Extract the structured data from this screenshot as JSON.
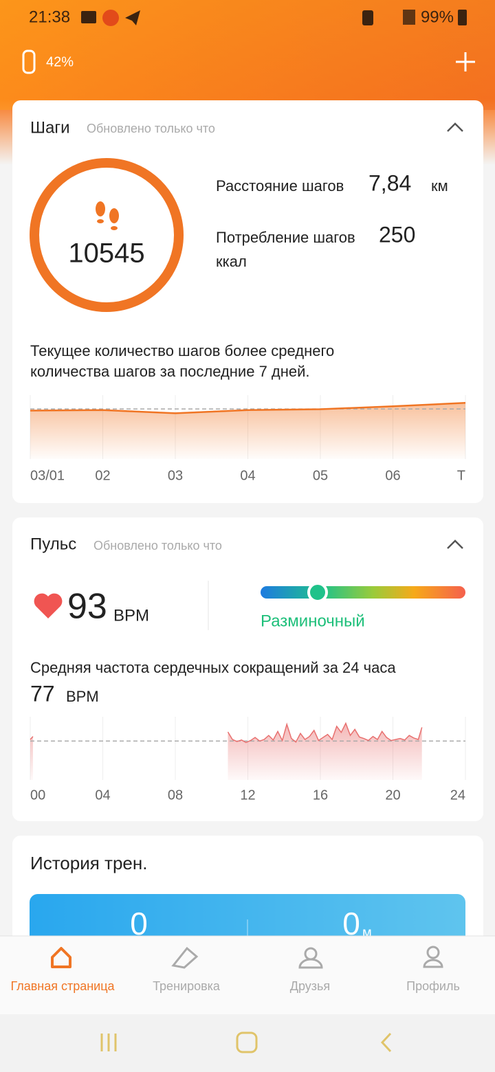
{
  "status_bar": {
    "time": "21:38",
    "battery": "99%"
  },
  "header": {
    "band_battery": "42%"
  },
  "steps": {
    "title": "Шаги",
    "updated": "Обновлено только что",
    "count": "10545",
    "distance_label": "Расстояние шагов",
    "distance": "7,84",
    "distance_unit": "км",
    "calories_label": "Потребление шагов",
    "calories": "250",
    "calories_unit": "ккал",
    "note": [
      "Текущее количество шагов более среднего",
      "количества шагов за последние 7 дней."
    ]
  },
  "pulse": {
    "title": "Пульс",
    "updated": "Обновлено только что",
    "value": "93",
    "unit": "BPM",
    "zone": "Разминочный",
    "average_label": "Средняя частота сердечных сокращений за 24 часа",
    "average_unit": "BPM"
  },
  "history": {
    "title": "История трен.",
    "values": [
      "0",
      "0"
    ],
    "unit": "м"
  },
  "nav": [
    "Главная страница",
    "Тренировка",
    "Друзья",
    "Профиль"
  ],
  "chart_data": [
    {
      "type": "line",
      "categories": [
        "03/01",
        "02",
        "03",
        "04",
        "05",
        "06",
        "Т"
      ],
      "values": [
        9100,
        9200,
        8600,
        9200,
        9350,
        9900,
        10545
      ],
      "average": 9400,
      "color": "#f07524",
      "ylim": [
        0,
        12000
      ]
    },
    {
      "type": "line",
      "x": [
        0,
        0.15,
        0.3,
        10.9,
        11.15,
        11.4,
        11.65,
        11.9,
        12.15,
        12.4,
        12.65,
        12.9,
        13.15,
        13.4,
        13.65,
        13.9,
        14.15,
        14.4,
        14.65,
        14.9,
        15.15,
        15.4,
        15.65,
        15.9,
        16.15,
        16.4,
        16.65,
        16.9,
        17.15,
        17.4,
        17.65,
        17.9,
        18.15,
        18.4,
        18.65,
        18.9,
        19.15,
        19.4,
        19.65,
        19.9,
        20.15,
        20.4,
        20.65,
        20.9,
        21.15,
        21.4,
        21.6
      ],
      "values": [
        80,
        86,
        null,
        95,
        80,
        76,
        79,
        74,
        78,
        84,
        77,
        80,
        88,
        79,
        96,
        78,
        110,
        82,
        75,
        92,
        80,
        86,
        98,
        78,
        84,
        90,
        80,
        106,
        94,
        112,
        88,
        100,
        85,
        82,
        78,
        86,
        80,
        96,
        84,
        78,
        80,
        82,
        79,
        88,
        83,
        80,
        104
      ],
      "average": 77,
      "color": "#e8706f",
      "ylim": [
        0,
        125
      ],
      "xlim": [
        0,
        24
      ],
      "xticks": [
        {
          "value": 0,
          "label": "00"
        },
        {
          "value": 4,
          "label": "04"
        },
        {
          "value": 8,
          "label": "08"
        },
        12,
        16,
        20,
        24
      ]
    }
  ]
}
